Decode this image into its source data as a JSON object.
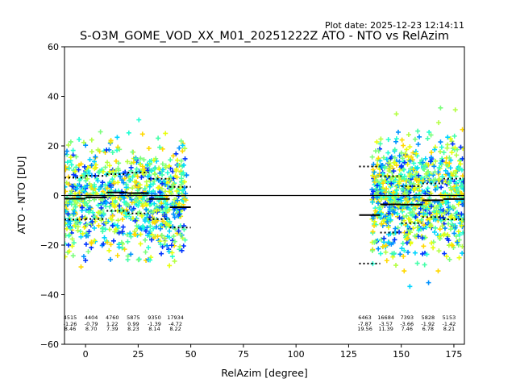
{
  "header": {
    "plot_date": "Plot date: 2025-12-23 12:14:11",
    "title": "S-O3M_GOME_VOD_XX_M01_20251222Z ATO - NTO vs RelAzim"
  },
  "chart_data": {
    "type": "scatter",
    "xlabel": "RelAzim [degree]",
    "ylabel": "ATO - NTO [DU]",
    "xlim": [
      -10,
      180
    ],
    "ylim": [
      -60,
      60
    ],
    "xticks": [
      "0",
      "25",
      "50",
      "75",
      "100",
      "125",
      "150",
      "175"
    ],
    "xtick_values": [
      0,
      25,
      50,
      75,
      100,
      125,
      150,
      175
    ],
    "yticks": [
      "60",
      "40",
      "20",
      "0",
      "−20",
      "−40",
      "−60"
    ],
    "ytick_values": [
      60,
      40,
      20,
      0,
      -20,
      -40,
      -60
    ],
    "zero_line": 0,
    "bins": [
      {
        "x0": -10,
        "x1": 0,
        "count": "4515",
        "mean": "-1.26",
        "std": "8.46",
        "mean_val": -1.26,
        "std_val": 8.46
      },
      {
        "x0": 0,
        "x1": 10,
        "count": "4404",
        "mean": "-0.79",
        "std": "8.70",
        "mean_val": -0.79,
        "std_val": 8.7
      },
      {
        "x0": 10,
        "x1": 20,
        "count": "4760",
        "mean": "1.22",
        "std": "7.39",
        "mean_val": 1.22,
        "std_val": 7.39
      },
      {
        "x0": 20,
        "x1": 30,
        "count": "5875",
        "mean": "0.99",
        "std": "8.23",
        "mean_val": 0.99,
        "std_val": 8.23
      },
      {
        "x0": 30,
        "x1": 40,
        "count": "9350",
        "mean": "-1.39",
        "std": "8.14",
        "mean_val": -1.39,
        "std_val": 8.14
      },
      {
        "x0": 40,
        "x1": 50,
        "count": "17934",
        "mean": "-4.72",
        "std": "8.22",
        "mean_val": -4.72,
        "std_val": 8.22
      },
      {
        "x0": 130,
        "x1": 140,
        "count": "6463",
        "mean": "-7.87",
        "std": "19.56",
        "mean_val": -7.87,
        "std_val": 19.56
      },
      {
        "x0": 140,
        "x1": 150,
        "count": "16684",
        "mean": "-3.57",
        "std": "11.39",
        "mean_val": -3.57,
        "std_val": 11.39
      },
      {
        "x0": 150,
        "x1": 160,
        "count": "7393",
        "mean": "-3.66",
        "std": "7.46",
        "mean_val": -3.66,
        "std_val": 7.46
      },
      {
        "x0": 160,
        "x1": 170,
        "count": "5828",
        "mean": "-1.92",
        "std": "6.78",
        "mean_val": -1.92,
        "std_val": 6.78
      },
      {
        "x0": 170,
        "x1": 180,
        "count": "5153",
        "mean": "-1.42",
        "std": "8.21",
        "mean_val": -1.42,
        "std_val": 8.21
      }
    ],
    "scatter_regions": [
      {
        "x0": -10,
        "x1": 48,
        "y0": -25,
        "y1": 22
      },
      {
        "x0": 136,
        "x1": 180,
        "y0": -25,
        "y1": 25
      }
    ],
    "colors": [
      "#45ffa9",
      "#22ffd4",
      "#00d4ff",
      "#0091ff",
      "#7bff7b",
      "#b4ff43",
      "#e8ff0e",
      "#ffd900",
      "#0034ff"
    ]
  }
}
